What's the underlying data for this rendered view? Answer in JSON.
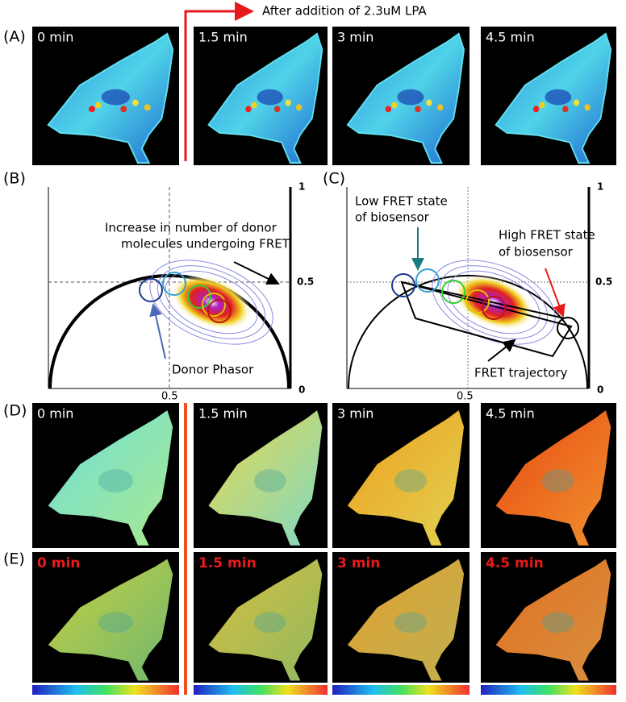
{
  "header": {
    "treatment": "After addition of 2.3uM LPA"
  },
  "panels": {
    "A": {
      "label": "(A)",
      "times": [
        "0 min",
        "1.5 min",
        "3 min",
        "4.5 min"
      ]
    },
    "B": {
      "label": "(B)",
      "yticks": [
        "1",
        "0.5",
        "0"
      ],
      "xtick": "0.5",
      "annotation": [
        "Increase in number of donor",
        "molecules undergoing FRET"
      ],
      "donor": "Donor Phasor"
    },
    "C": {
      "label": "(C)",
      "yticks": [
        "1",
        "0.5",
        "0"
      ],
      "xtick": "0.5",
      "low": [
        "Low FRET state",
        "of biosensor"
      ],
      "high": [
        "High FRET state",
        "of biosensor"
      ],
      "trajectory": "FRET trajectory"
    },
    "D": {
      "label": "(D)",
      "times": [
        "0 min",
        "1.5 min",
        "3 min",
        "4.5 min"
      ]
    },
    "E": {
      "label": "(E)",
      "times": [
        "0 min",
        "1.5 min",
        "3 min",
        "4.5 min"
      ]
    }
  }
}
